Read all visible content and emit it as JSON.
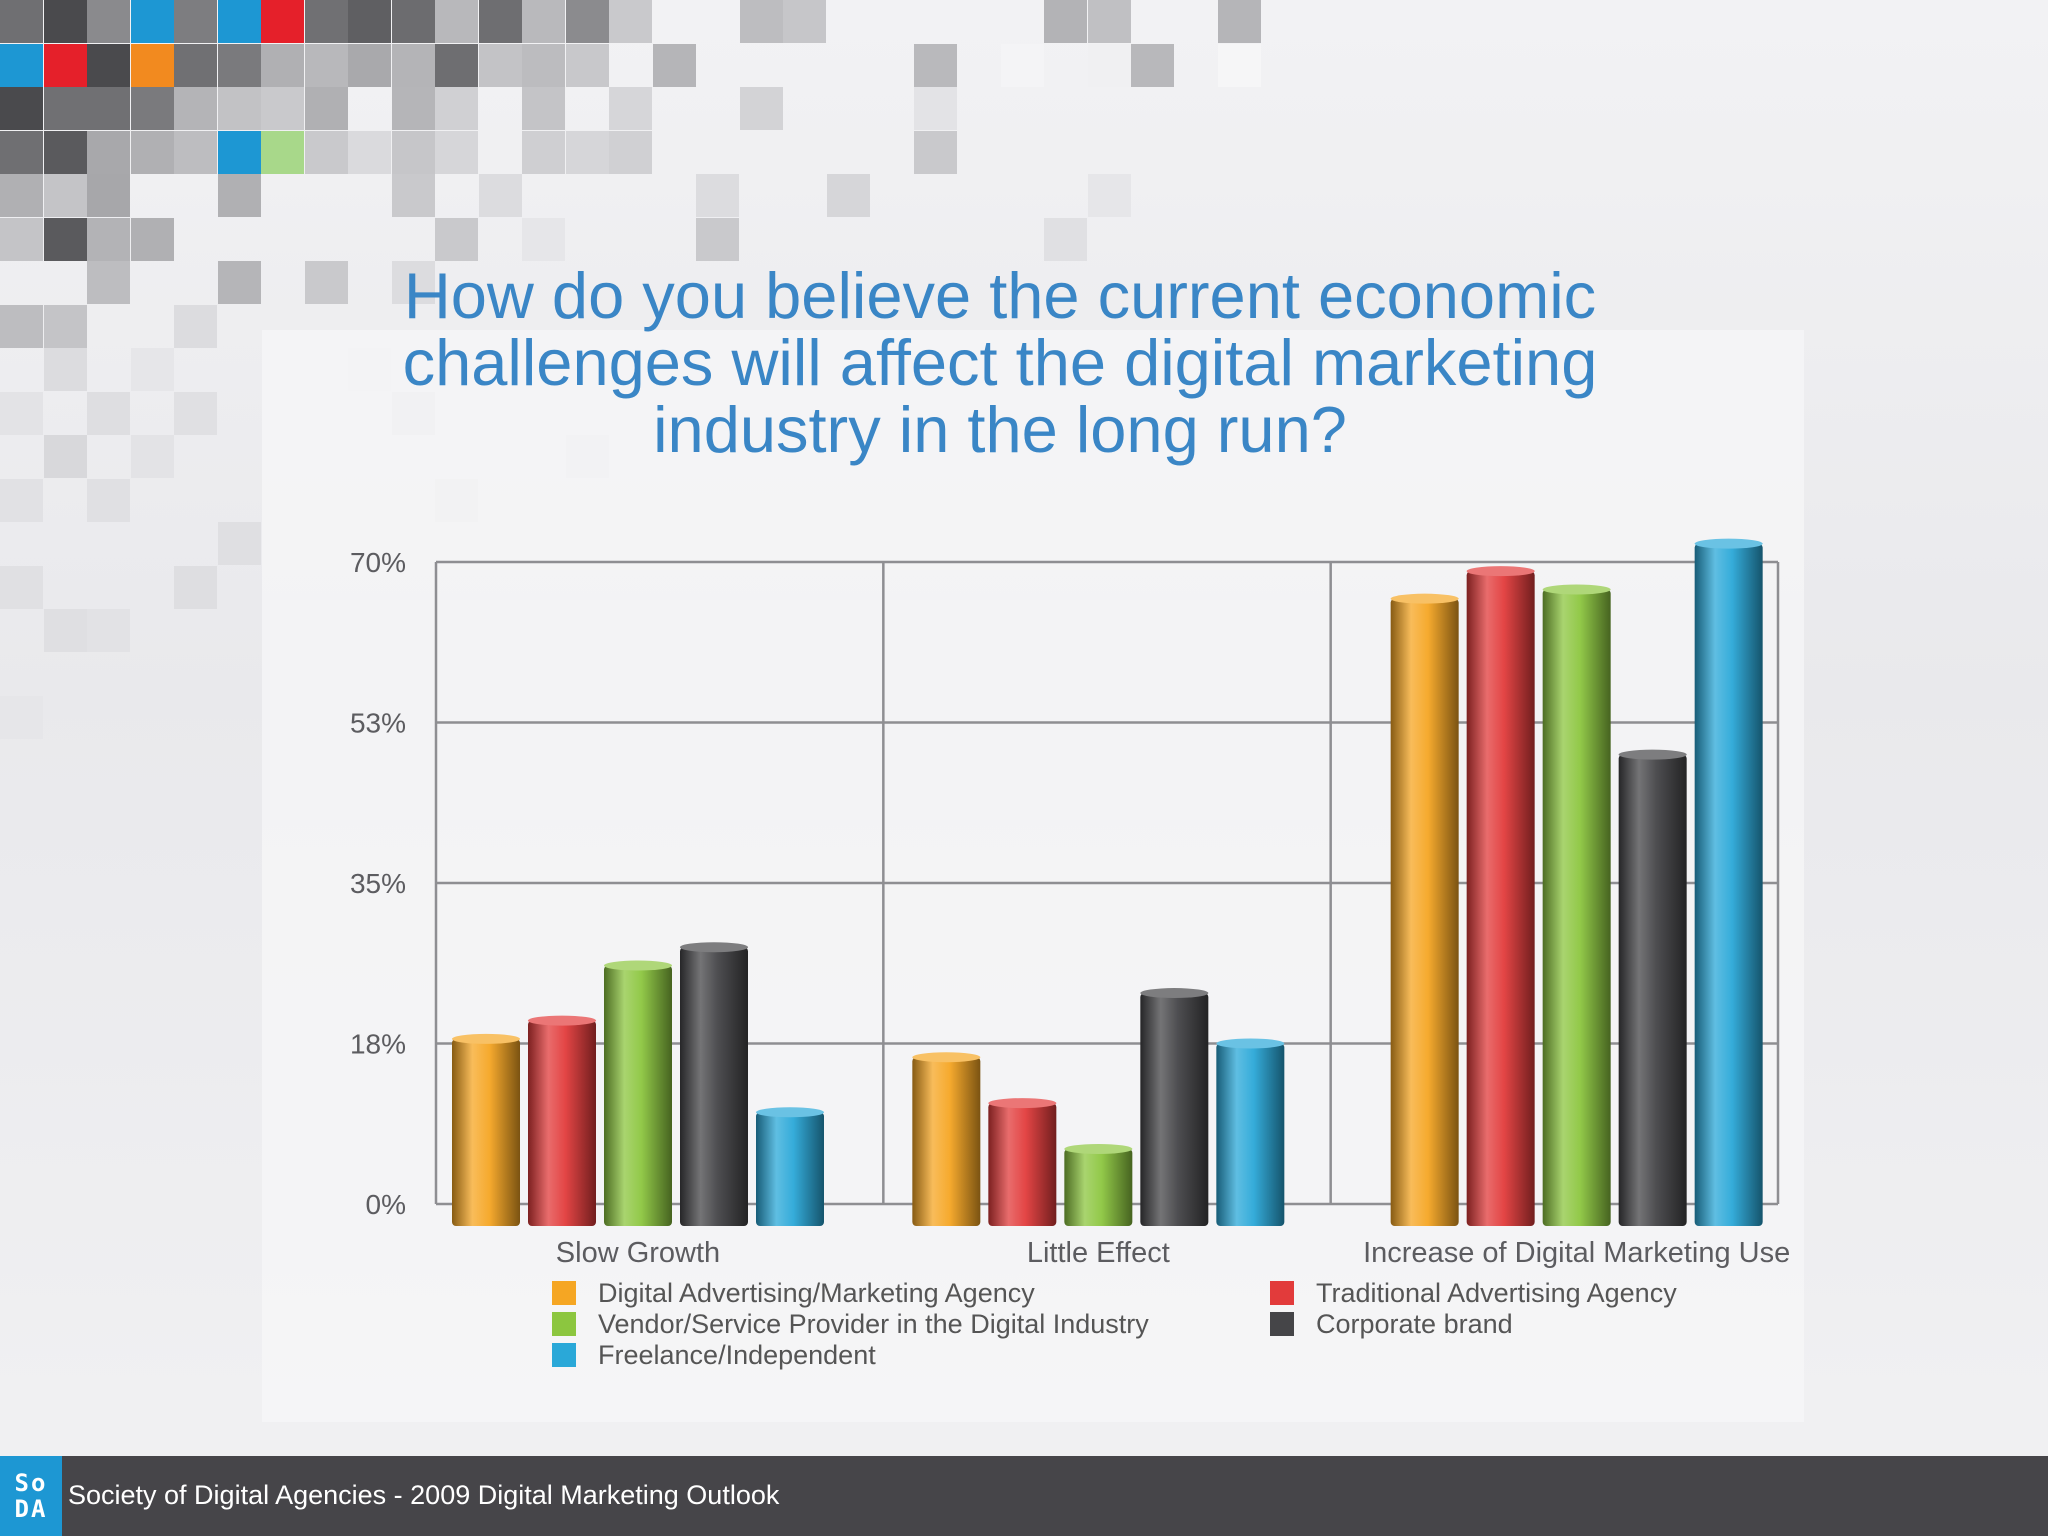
{
  "slide": {
    "title": "How do you believe the current economic\nchallenges will affect the digital marketing\nindustry in the long run?"
  },
  "footer": {
    "logo_top": "So",
    "logo_bottom": "DA",
    "text": "Society of Digital Agencies - 2009 Digital Marketing Outlook"
  },
  "chart_data": {
    "type": "bar",
    "title": "How do you believe the current economic challenges will affect the digital marketing industry in the long run?",
    "xlabel": "",
    "ylabel": "",
    "categories": [
      "Slow Growth",
      "Little Effect",
      "Increase of Digital Marketing Use"
    ],
    "y_ticks": [
      "0%",
      "18%",
      "35%",
      "53%",
      "70%"
    ],
    "y_tick_values": [
      0,
      17.5,
      35,
      52.5,
      70
    ],
    "ylim": [
      0,
      70
    ],
    "grid": true,
    "legend_position": "bottom",
    "series": [
      {
        "name": "Digital Advertising/Marketing Agency",
        "color": "#f5a623",
        "values": [
          18,
          16,
          66
        ]
      },
      {
        "name": "Traditional Advertising Agency",
        "color": "#e23b3b",
        "values": [
          20,
          11,
          69
        ]
      },
      {
        "name": "Vendor/Service Provider in the Digital Industry",
        "color": "#8cc63f",
        "values": [
          26,
          6,
          67
        ]
      },
      {
        "name": "Corporate brand",
        "color": "#454548",
        "values": [
          28,
          23,
          49
        ]
      },
      {
        "name": "Freelance/Independent",
        "color": "#2aa8d8",
        "values": [
          10,
          17.5,
          72
        ]
      }
    ]
  }
}
